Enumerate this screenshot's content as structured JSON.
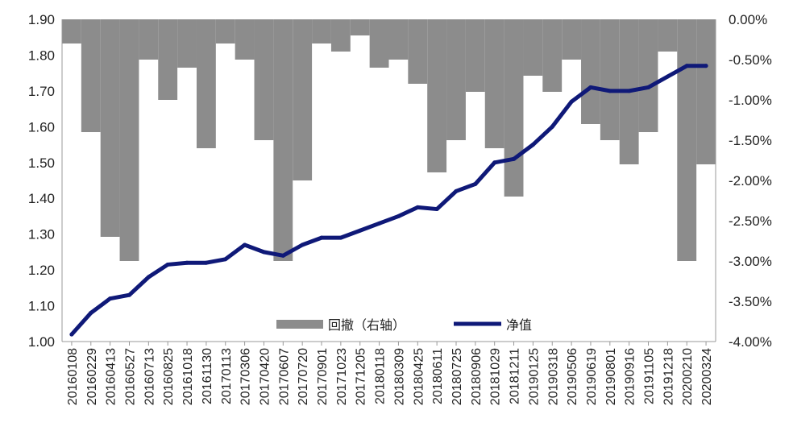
{
  "chart_data": {
    "type": "line",
    "title": "",
    "xlabel": "",
    "ylabel": "",
    "ylim": [
      1.0,
      1.9
    ],
    "y2lim": [
      -4.0,
      0.0
    ],
    "left_ticks": [
      "1.90",
      "1.80",
      "1.70",
      "1.60",
      "1.50",
      "1.40",
      "1.30",
      "1.20",
      "1.10",
      "1.00"
    ],
    "right_ticks": [
      "0.00%",
      "-0.50%",
      "-1.00%",
      "-1.50%",
      "-2.00%",
      "-2.50%",
      "-3.00%",
      "-3.50%",
      "-4.00%"
    ],
    "x_tick_labels": [
      "20160108",
      "20160229",
      "20160413",
      "20160527",
      "20160713",
      "20160825",
      "20161018",
      "20161130",
      "20170113",
      "20170306",
      "20170420",
      "20170607",
      "20170720",
      "20170901",
      "20171023",
      "20171205",
      "20180118",
      "20180309",
      "20180425",
      "20180611",
      "20180725",
      "20180906",
      "20181029",
      "20181211",
      "20190125",
      "20190318",
      "20190506",
      "20190619",
      "20190801",
      "20190916",
      "20191105",
      "20191218",
      "20200210",
      "20200324"
    ],
    "legend_position": "bottom-center",
    "grid": false,
    "series": [
      {
        "name": "回撤（右轴）",
        "type": "area",
        "axis": "right",
        "color": "#8c8c8c",
        "x_index": [
          0,
          1,
          2,
          3,
          4,
          5,
          6,
          7,
          8,
          9,
          10,
          11,
          12,
          13,
          14,
          15,
          16,
          17,
          18,
          19,
          20,
          21,
          22,
          23,
          24,
          25,
          26,
          27,
          28,
          29,
          30,
          31,
          32,
          33
        ],
        "values": [
          -0.3,
          -1.4,
          -2.7,
          -3.0,
          -0.5,
          -1.0,
          -0.6,
          -1.6,
          -0.3,
          -0.5,
          -1.5,
          -3.0,
          -2.0,
          -0.3,
          -0.4,
          -0.2,
          -0.6,
          -0.5,
          -0.8,
          -1.9,
          -1.5,
          -0.9,
          -1.6,
          -2.2,
          -0.7,
          -0.9,
          -0.5,
          -1.3,
          -1.5,
          -1.8,
          -1.4,
          -0.4,
          -3.0,
          -1.8
        ]
      },
      {
        "name": "净值",
        "type": "line",
        "axis": "left",
        "color": "#0f1978",
        "x_index": [
          0,
          1,
          2,
          3,
          4,
          5,
          6,
          7,
          8,
          9,
          10,
          11,
          12,
          13,
          14,
          15,
          16,
          17,
          18,
          19,
          20,
          21,
          22,
          23,
          24,
          25,
          26,
          27,
          28,
          29,
          30,
          31,
          32,
          33
        ],
        "values": [
          1.02,
          1.08,
          1.12,
          1.13,
          1.18,
          1.215,
          1.22,
          1.22,
          1.23,
          1.27,
          1.25,
          1.24,
          1.27,
          1.29,
          1.29,
          1.31,
          1.33,
          1.35,
          1.375,
          1.37,
          1.42,
          1.44,
          1.5,
          1.51,
          1.55,
          1.6,
          1.67,
          1.71,
          1.7,
          1.7,
          1.71,
          1.74,
          1.77,
          1.77
        ]
      }
    ]
  }
}
